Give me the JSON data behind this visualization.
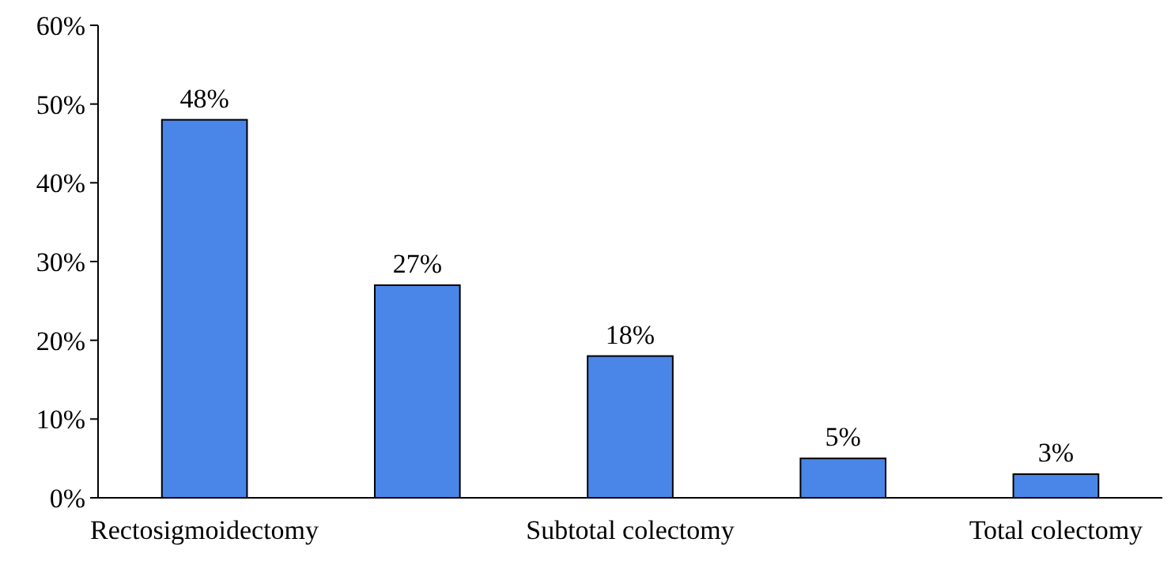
{
  "chart_data": {
    "type": "bar",
    "categories": [
      "Rectosigmoidectomy",
      null,
      "Subtotal colectomy",
      null,
      "Total colectomy"
    ],
    "values": [
      48,
      27,
      18,
      5,
      3
    ],
    "value_labels": [
      "48%",
      "27%",
      "18%",
      "5%",
      "3%"
    ],
    "color": "#4a86e8",
    "ylim": [
      0,
      60
    ],
    "yticks": [
      {
        "value": 0,
        "label": "0%"
      },
      {
        "value": 10,
        "label": "10%"
      },
      {
        "value": 20,
        "label": "20%"
      },
      {
        "value": 30,
        "label": "30%"
      },
      {
        "value": 40,
        "label": "40%"
      },
      {
        "value": 50,
        "label": "50%"
      },
      {
        "value": 60,
        "label": "60%"
      }
    ],
    "grid": false
  }
}
